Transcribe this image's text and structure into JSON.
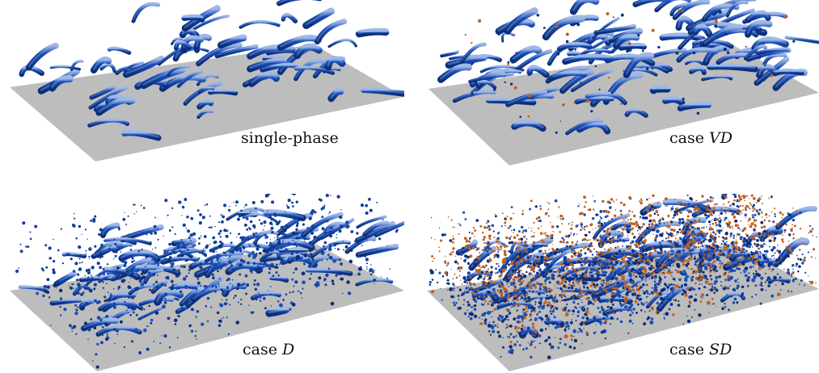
{
  "figure": {
    "panels": [
      {
        "id": "single-phase",
        "caption_text": "single-phase",
        "caption_italic": ""
      },
      {
        "id": "vd",
        "caption_text": "case ",
        "caption_italic": "VD"
      },
      {
        "id": "d",
        "caption_text": "case ",
        "caption_italic": "D"
      },
      {
        "id": "sd",
        "caption_text": "case ",
        "caption_italic": "SD"
      }
    ]
  },
  "colors": {
    "wall": "#bdbdbd",
    "vortex_dark": "#0b2e7a",
    "vortex_mid": "#1a4fb8",
    "vortex_light": "#9fb8e6",
    "particle_orange": "#c2601c",
    "particle_blue": "#123f9a"
  },
  "icons": {
    "vortex_structures": "blue-vortex-tube-isosurfaces",
    "particles": "dispersed-particle-dots"
  }
}
